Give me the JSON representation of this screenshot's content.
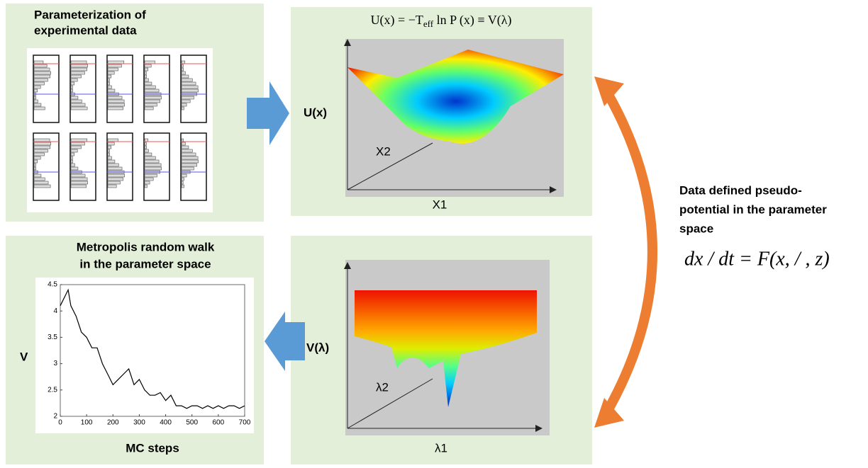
{
  "panel1": {
    "title_lines": [
      "Parameterization of",
      "experimental data"
    ]
  },
  "panel2": {
    "formula": {
      "lhs": "U(x) = −T",
      "sub": "eff",
      "rhs": " ln P (x) ≡ V(λ)"
    },
    "y_label": "U(x)",
    "depth_label": "X2",
    "x_label": "X1"
  },
  "side": {
    "caption_lines": [
      "Data defined pseudo-",
      "potential in the parameter",
      "space"
    ],
    "equation": "dx / dt = F(x, / , z)"
  },
  "panel3": {
    "title_lines": [
      "Metropolis random walk",
      "in the parameter space"
    ],
    "y_label": "V",
    "x_label": "MC steps",
    "mc_chart": {
      "xlim": [
        0,
        700
      ],
      "ylim": [
        2,
        4.5
      ],
      "xticks": [
        0,
        100,
        200,
        300,
        400,
        500,
        600,
        700
      ],
      "yticks": [
        2,
        2.5,
        3,
        3.5,
        4,
        4.5
      ],
      "x": [
        0,
        20,
        30,
        40,
        60,
        80,
        100,
        120,
        140,
        160,
        180,
        200,
        220,
        240,
        260,
        280,
        300,
        320,
        340,
        360,
        380,
        400,
        420,
        440,
        460,
        480,
        500,
        520,
        540,
        560,
        580,
        600,
        620,
        640,
        660,
        680,
        700
      ],
      "values": [
        4.1,
        4.3,
        4.4,
        4.1,
        3.9,
        3.6,
        3.5,
        3.3,
        3.3,
        3.0,
        2.8,
        2.6,
        2.7,
        2.8,
        2.9,
        2.6,
        2.7,
        2.5,
        2.4,
        2.4,
        2.45,
        2.3,
        2.4,
        2.2,
        2.2,
        2.15,
        2.2,
        2.2,
        2.15,
        2.2,
        2.15,
        2.2,
        2.15,
        2.2,
        2.2,
        2.15,
        2.2
      ]
    }
  },
  "panel4": {
    "y_label": "V(λ)",
    "depth_label": "λ2",
    "x_label": "λ1"
  }
}
